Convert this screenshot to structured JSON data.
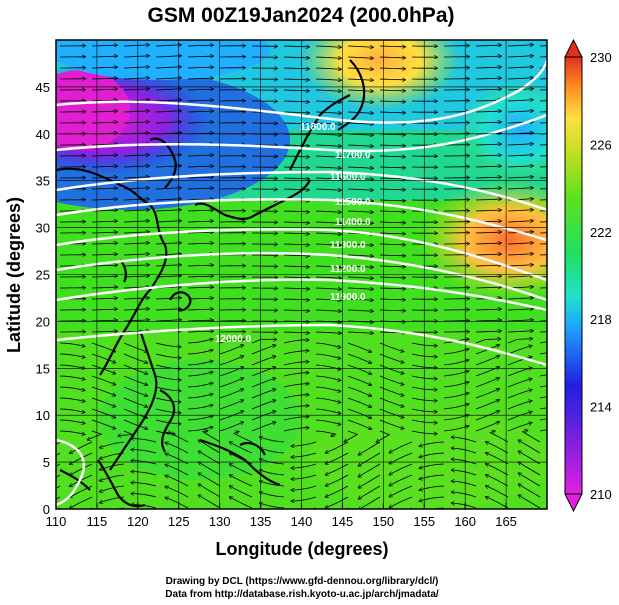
{
  "title": "GSM 00Z19Jan2024 (200.0hPa)",
  "x_axis": {
    "label": "Longitude (degrees)",
    "range": [
      110,
      170
    ],
    "ticks": [
      "110",
      "115",
      "120",
      "125",
      "130",
      "135",
      "140",
      "145",
      "150",
      "155",
      "160",
      "165"
    ]
  },
  "y_axis": {
    "label": "Latitude  (degrees)",
    "range": [
      0,
      50
    ],
    "ticks": [
      "0",
      "5",
      "10",
      "15",
      "20",
      "25",
      "30",
      "35",
      "40",
      "45"
    ]
  },
  "colorbar": {
    "range": [
      210,
      230
    ],
    "ticks": [
      "230",
      "226",
      "222",
      "218",
      "214",
      "210"
    ],
    "colors": [
      "#e020e0",
      "#2020e0",
      "#20c0ff",
      "#20e080",
      "#40e020",
      "#a0e020",
      "#ffe040",
      "#ff8020",
      "#e02020"
    ]
  },
  "contour_labels": [
    "11800.0",
    "11700.0",
    "11600.0",
    "11500.0",
    "11400.0",
    "11300.0",
    "11200.0",
    "11900.0",
    "12000.0"
  ],
  "credits": {
    "line1": "Drawing by DCL (https://www.gfd-dennou.org/library/dcl/)",
    "line2": "Data from http://database.rish.kyoto-u.ac.jp/arch/jmadata/"
  },
  "chart_data": {
    "type": "heatmap",
    "title": "GSM 00Z19Jan2024 (200.0hPa)",
    "xlabel": "Longitude (degrees)",
    "ylabel": "Latitude  (degrees)",
    "xlim": [
      110,
      170
    ],
    "ylim": [
      0,
      50
    ],
    "colorbar_range": [
      210,
      230
    ],
    "contour_values": [
      11200,
      11300,
      11400,
      11500,
      11600,
      11700,
      11800,
      11900,
      12000
    ]
  }
}
